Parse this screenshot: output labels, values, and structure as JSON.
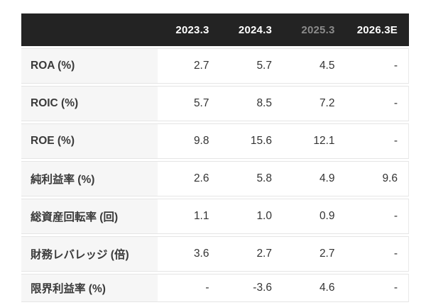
{
  "table": {
    "columns": [
      "2023.3",
      "2024.3",
      "2025.3",
      "2026.3E"
    ],
    "muted_column": "2025.3",
    "rows": [
      {
        "label": "ROA (%)",
        "values": [
          "2.7",
          "5.7",
          "4.5",
          "-"
        ]
      },
      {
        "label": "ROIC (%)",
        "values": [
          "5.7",
          "8.5",
          "7.2",
          "-"
        ]
      },
      {
        "label": "ROE (%)",
        "values": [
          "9.8",
          "15.6",
          "12.1",
          "-"
        ]
      },
      {
        "label": "純利益率 (%)",
        "values": [
          "2.6",
          "5.8",
          "4.9",
          "9.6"
        ]
      },
      {
        "label": "総資産回転率 (回)",
        "values": [
          "1.1",
          "1.0",
          "0.9",
          "-"
        ]
      },
      {
        "label": "財務レバレッジ (倍)",
        "values": [
          "3.6",
          "2.7",
          "2.7",
          "-"
        ]
      },
      {
        "label": "限界利益率 (%)",
        "values": [
          "-",
          "-3.6",
          "4.6",
          "-"
        ]
      }
    ],
    "colors": {
      "header_bg": "#232323",
      "header_text": "#ffffff",
      "header_muted_text": "#8b8b8b",
      "label_cell_bg": "#f6f6f6",
      "row_border": "#e5e5e5",
      "body_text": "#333333"
    }
  }
}
